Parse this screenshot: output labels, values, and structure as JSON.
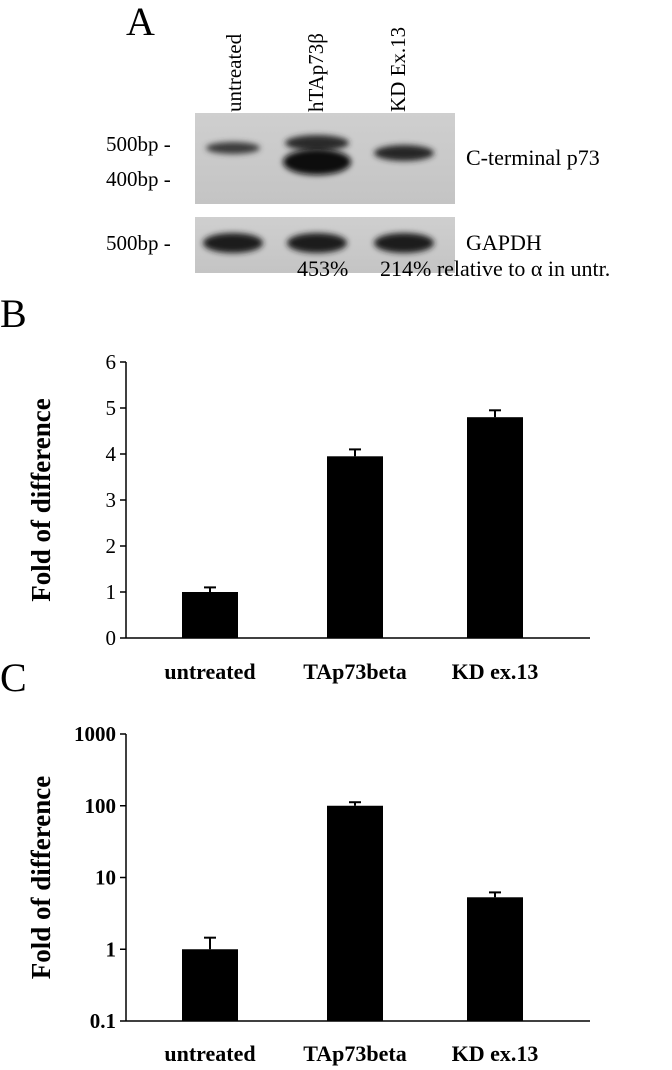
{
  "panel_a": {
    "letter": "A",
    "lanes": [
      "untreated",
      "hTAp73β",
      "KD Ex.13"
    ],
    "markers_top": [
      "500bp -",
      "400bp -"
    ],
    "marker_bottom": "500bp -",
    "band_top_label": "C-terminal p73",
    "band_bottom_label": "GAPDH",
    "percent_1": "453%",
    "percent_2": "214% relative to α in untr."
  },
  "panel_b": {
    "letter": "B"
  },
  "panel_c": {
    "letter": "C"
  },
  "chart_data": [
    {
      "type": "bar",
      "ylabel": "Fold of difference",
      "categories": [
        "untreated",
        "TAp73beta",
        "KD ex.13"
      ],
      "values": [
        1.0,
        3.95,
        4.8
      ],
      "errors": [
        0.1,
        0.15,
        0.15
      ],
      "ylim": [
        0,
        6
      ],
      "yticks": [
        "0",
        "1",
        "2",
        "3",
        "4",
        "5",
        "6"
      ],
      "yscale": "linear",
      "bar_color": "#000000"
    },
    {
      "type": "bar",
      "ylabel": "Fold of difference",
      "categories": [
        "untreated",
        "TAp73beta",
        "KD ex.13"
      ],
      "values": [
        1.0,
        100,
        5.3
      ],
      "errors_upper": [
        1.45,
        112,
        6.2
      ],
      "ylim": [
        0.1,
        1000
      ],
      "yticks": [
        "0.1",
        "1",
        "10",
        "100",
        "1000"
      ],
      "yscale": "log",
      "bar_color": "#000000"
    }
  ]
}
